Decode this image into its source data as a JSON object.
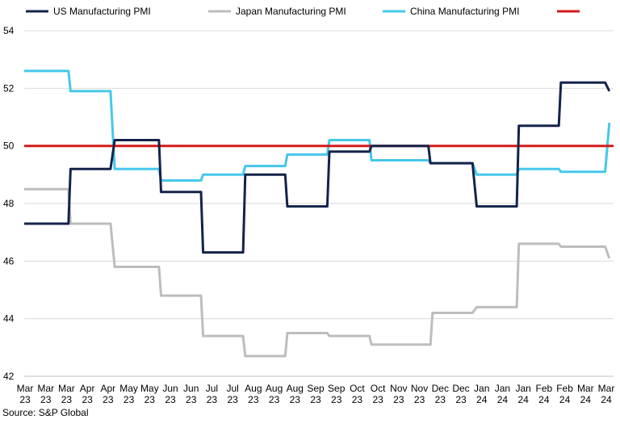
{
  "source": "Source: S&P Global",
  "chart_data": {
    "type": "line",
    "title": "",
    "xlabel": "",
    "ylabel": "",
    "ylim": [
      42,
      54
    ],
    "yticks": [
      42,
      44,
      46,
      48,
      50,
      52,
      54
    ],
    "grid": "horizontal",
    "legend_position": "top",
    "x_tick_labels": [
      [
        "Mar",
        "23"
      ],
      [
        "Mar",
        "23"
      ],
      [
        "Mar",
        "23"
      ],
      [
        "Apr",
        "23"
      ],
      [
        "Apr",
        "23"
      ],
      [
        "May",
        "23"
      ],
      [
        "May",
        "23"
      ],
      [
        "Jun",
        "23"
      ],
      [
        "Jun",
        "23"
      ],
      [
        "Jul",
        "23"
      ],
      [
        "Jul",
        "23"
      ],
      [
        "Aug",
        "23"
      ],
      [
        "Aug",
        "23"
      ],
      [
        "Aug",
        "23"
      ],
      [
        "Sep",
        "23"
      ],
      [
        "Sep",
        "23"
      ],
      [
        "Oct",
        "23"
      ],
      [
        "Oct",
        "23"
      ],
      [
        "Nov",
        "23"
      ],
      [
        "Nov",
        "23"
      ],
      [
        "Dec",
        "23"
      ],
      [
        "Dec",
        "23"
      ],
      [
        "Jan",
        "24"
      ],
      [
        "Jan",
        "24"
      ],
      [
        "Jan",
        "24"
      ],
      [
        "Feb",
        "24"
      ],
      [
        "Feb",
        "24"
      ],
      [
        "Mar",
        "24"
      ],
      [
        "Mar",
        "24"
      ]
    ],
    "series": [
      {
        "name": "US Manufacturing PMI",
        "color": "#14234b",
        "points": [
          [
            0,
            47.3
          ],
          [
            2.1,
            47.3
          ],
          [
            2.2,
            49.2
          ],
          [
            4.1,
            49.2
          ],
          [
            4.3,
            50.2
          ],
          [
            6.4,
            50.2
          ],
          [
            6.5,
            48.4
          ],
          [
            8.4,
            48.4
          ],
          [
            8.5,
            46.3
          ],
          [
            10.4,
            46.3
          ],
          [
            10.5,
            49.0
          ],
          [
            12.4,
            49.0
          ],
          [
            12.5,
            47.9
          ],
          [
            14.4,
            47.9
          ],
          [
            14.5,
            49.8
          ],
          [
            16.4,
            49.8
          ],
          [
            16.5,
            50.0
          ],
          [
            19.2,
            50.0
          ],
          [
            19.3,
            49.4
          ],
          [
            21.3,
            49.4
          ],
          [
            21.5,
            47.9
          ],
          [
            23.4,
            47.9
          ],
          [
            23.5,
            50.7
          ],
          [
            25.4,
            50.7
          ],
          [
            25.5,
            52.2
          ],
          [
            27.6,
            52.2
          ],
          [
            27.8,
            51.9
          ]
        ]
      },
      {
        "name": "Japan Manufacturing PMI",
        "color": "#bdbdbd",
        "points": [
          [
            0,
            48.5
          ],
          [
            2.1,
            48.5
          ],
          [
            2.2,
            47.3
          ],
          [
            4.1,
            47.3
          ],
          [
            4.3,
            45.8
          ],
          [
            6.4,
            45.8
          ],
          [
            6.5,
            44.8
          ],
          [
            8.4,
            44.8
          ],
          [
            8.5,
            43.4
          ],
          [
            10.4,
            43.4
          ],
          [
            10.5,
            42.7
          ],
          [
            12.4,
            42.7
          ],
          [
            12.5,
            43.5
          ],
          [
            14.4,
            43.5
          ],
          [
            14.5,
            43.4
          ],
          [
            16.4,
            43.4
          ],
          [
            16.5,
            43.1
          ],
          [
            19.3,
            43.1
          ],
          [
            19.4,
            44.2
          ],
          [
            21.3,
            44.2
          ],
          [
            21.5,
            44.4
          ],
          [
            23.4,
            44.4
          ],
          [
            23.5,
            46.6
          ],
          [
            25.4,
            46.6
          ],
          [
            25.5,
            46.5
          ],
          [
            27.6,
            46.5
          ],
          [
            27.8,
            46.1
          ]
        ]
      },
      {
        "name": "China Manufacturing PMI",
        "color": "#45c8ea",
        "points": [
          [
            0,
            52.6
          ],
          [
            2.1,
            52.6
          ],
          [
            2.2,
            51.9
          ],
          [
            4.1,
            51.9
          ],
          [
            4.3,
            49.2
          ],
          [
            6.4,
            49.2
          ],
          [
            6.5,
            48.8
          ],
          [
            8.4,
            48.8
          ],
          [
            8.5,
            49.0
          ],
          [
            10.4,
            49.0
          ],
          [
            10.5,
            49.3
          ],
          [
            12.4,
            49.3
          ],
          [
            12.5,
            49.7
          ],
          [
            14.4,
            49.7
          ],
          [
            14.5,
            50.2
          ],
          [
            16.4,
            50.2
          ],
          [
            16.5,
            49.5
          ],
          [
            19.2,
            49.5
          ],
          [
            19.3,
            49.4
          ],
          [
            21.3,
            49.4
          ],
          [
            21.5,
            49.0
          ],
          [
            23.4,
            49.0
          ],
          [
            23.5,
            49.2
          ],
          [
            25.4,
            49.2
          ],
          [
            25.5,
            49.1
          ],
          [
            27.6,
            49.1
          ],
          [
            27.8,
            50.8
          ]
        ]
      },
      {
        "name": "",
        "color": "#d51a1a",
        "points": [
          [
            0,
            50
          ],
          [
            28,
            50
          ]
        ]
      }
    ]
  }
}
